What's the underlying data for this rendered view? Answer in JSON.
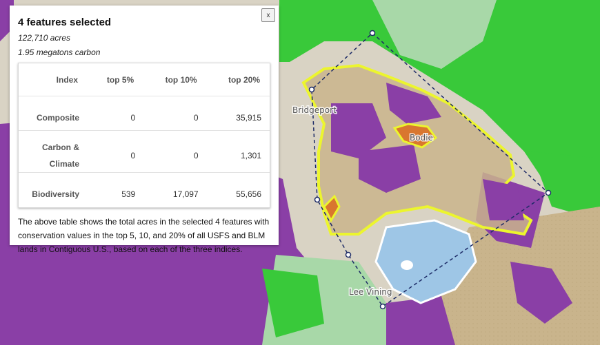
{
  "map": {
    "places": [
      "Bridgeport",
      "Bodie",
      "Lee Vining"
    ],
    "colors": {
      "forest_green": "#39c93a",
      "light_green": "#a8d8a8",
      "purple": "#8a3fa6",
      "tan": "#c9b48c",
      "yellow_selection": "#ecf52e",
      "lake": "#9ec6e6",
      "orange": "#d9772f"
    },
    "selection_icon": "polygon-draw-icon"
  },
  "popup": {
    "title": "4 features selected",
    "acres": "122,710 acres",
    "carbon": "1.95 megatons carbon",
    "close_label": "x",
    "table": {
      "headers": [
        "Index",
        "top 5%",
        "top 10%",
        "top 20%"
      ],
      "rows": [
        {
          "label": "Composite",
          "values": [
            "0",
            "0",
            "35,915"
          ]
        },
        {
          "label": "Carbon & Climate",
          "values": [
            "0",
            "0",
            "1,301"
          ]
        },
        {
          "label": "Biodiversity",
          "values": [
            "539",
            "17,097",
            "55,656"
          ]
        }
      ]
    },
    "description": "The above table shows the total acres in the selected 4 features with conservation values in the top 5, 10, and 20% of all USFS and BLM lands in Contiguous U.S., based on each of the three indices."
  }
}
